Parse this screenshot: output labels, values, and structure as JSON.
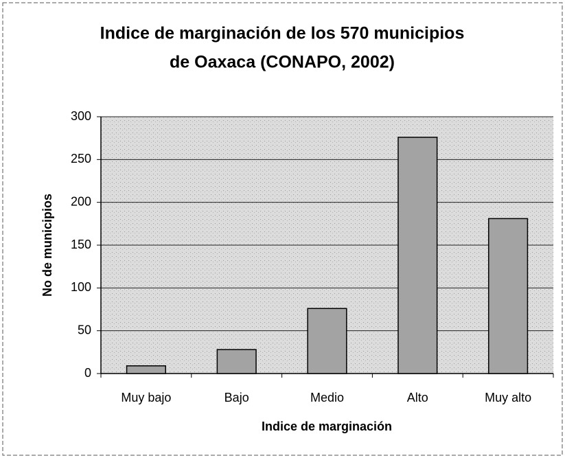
{
  "chart_data": {
    "type": "bar",
    "title": [
      "Indice de marginación de los 570 municipios",
      "de Oaxaca (CONAPO, 2002)"
    ],
    "x_label": "Indice de marginación",
    "y_label": "No de municipios",
    "categories": [
      "Muy bajo",
      "Bajo",
      "Medio",
      "Alto",
      "Muy alto"
    ],
    "values": [
      9,
      28,
      76,
      276,
      181
    ],
    "color": "#a3a3a3",
    "ylim": [
      0,
      300
    ],
    "yticks": [
      0,
      50,
      100,
      150,
      200,
      250,
      300
    ],
    "grid": true
  }
}
